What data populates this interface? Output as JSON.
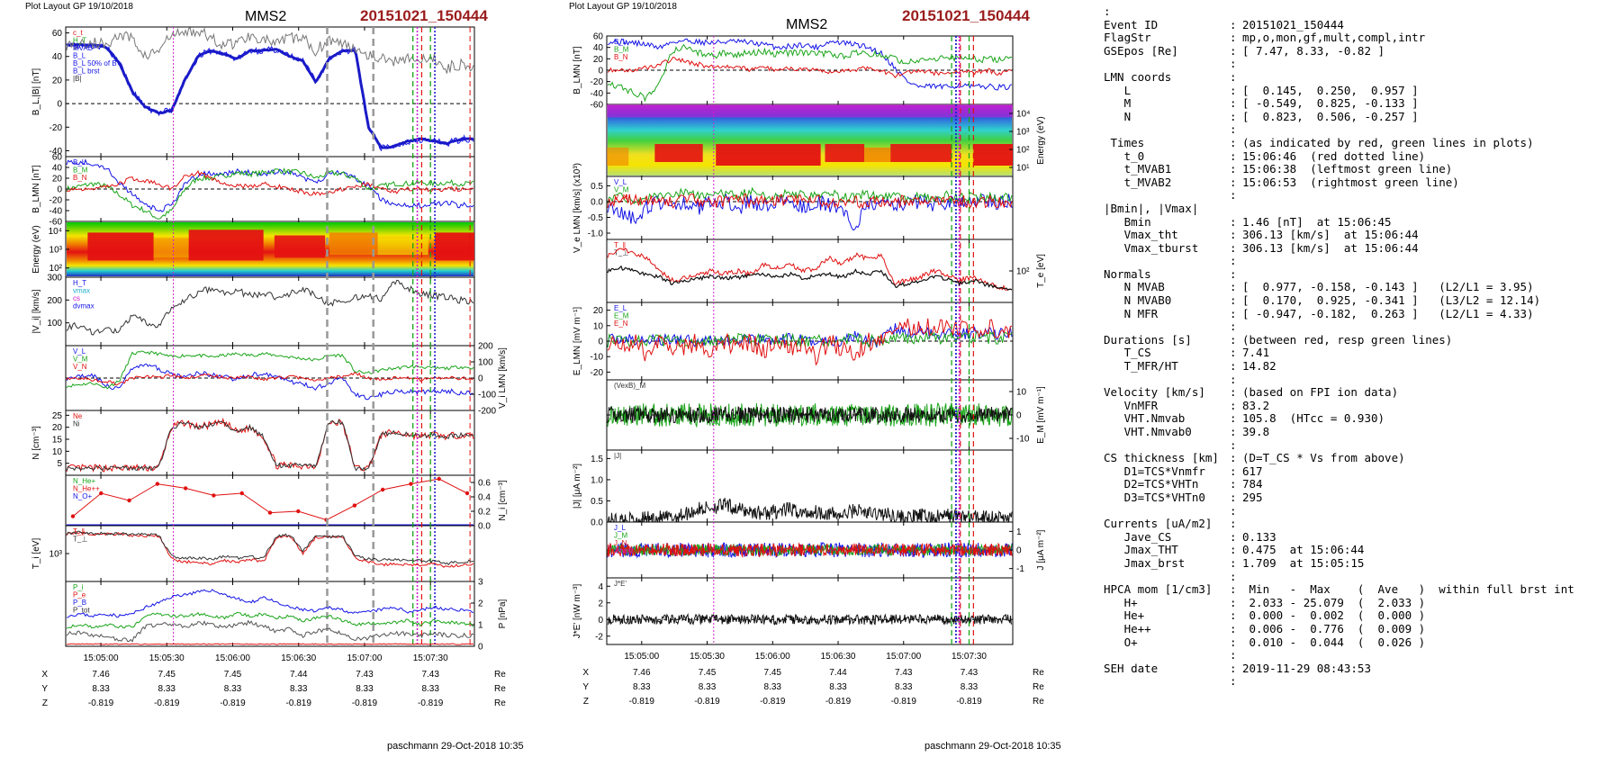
{
  "page": {
    "left_header": "Plot Layout GP 19/10/2018",
    "right_header": "Plot Layout GP 19/10/2018",
    "spacecraft": "MMS2",
    "event": "20151021_150444",
    "footer_left": "paschmann 29-Oct-2018 10:35",
    "footer_right": "paschmann 29-Oct-2018 10:35"
  },
  "colors": {
    "blue": "#1515e6",
    "green": "#1aa51a",
    "red": "#e01010",
    "magenta": "#d020d0",
    "gray": "#777777",
    "dark": "#111111",
    "event_red": "#9b1c1c"
  },
  "chart_data": [
    {
      "id": "left-stack",
      "type": "line",
      "time_ticks": [
        "15:05:00",
        "15:05:30",
        "15:06:00",
        "15:06:30",
        "15:07:00",
        "15:07:30"
      ],
      "orbit": {
        "labels": [
          "X",
          "Y",
          "Z"
        ],
        "unit": "Re",
        "X": [
          "7.46",
          "7.45",
          "7.45",
          "7.44",
          "7.43",
          "7.43"
        ],
        "Y": [
          "8.33",
          "8.33",
          "8.33",
          "8.33",
          "8.33",
          "8.33"
        ],
        "Z": [
          "-0.819",
          "-0.819",
          "-0.819",
          "-0.819",
          "-0.819",
          "-0.819"
        ]
      },
      "panels": [
        {
          "ylabel": "B_L,|B| [nT]",
          "yticks": [
            "60",
            "40",
            "20",
            "0",
            "-20",
            "-40"
          ],
          "ylim": [
            -45,
            65
          ],
          "legend": [
            "c_t",
            "H_T",
            "MVAB",
            "B_L",
            "B_L 50% of B",
            "B_L brst",
            "|B|"
          ]
        },
        {
          "ylabel": "B_LMN [nT]",
          "yticks": [
            "60",
            "40",
            "20",
            "0",
            "-20",
            "-40",
            "-60"
          ],
          "ylim": [
            -60,
            60
          ],
          "legend": [
            "B_L",
            "B_M",
            "B_N"
          ]
        },
        {
          "ylabel": "Energy (eV)",
          "type": "heatmap",
          "yticks": [
            "10⁴",
            "10³",
            "10²"
          ]
        },
        {
          "ylabel": "|V_i| [km/s]",
          "yticks": [
            "300",
            "200",
            "100"
          ],
          "ylim": [
            0,
            300
          ],
          "legend": [
            "H_T",
            "vmax",
            "cs",
            "dvmax"
          ]
        },
        {
          "ylabel": "V_i LMN [km/s]",
          "yticks": [
            "200",
            "100",
            "0",
            "-100",
            "-200"
          ],
          "ylim": [
            -200,
            200
          ],
          "legend": [
            "V_L",
            "V_M",
            "V_N"
          ]
        },
        {
          "ylabel": "N [cm⁻³]",
          "yticks": [
            "25",
            "20",
            "15",
            "10",
            "5"
          ],
          "ylim": [
            0,
            27
          ],
          "legend": [
            "Ne",
            "Ni"
          ]
        },
        {
          "ylabel": "N_i [cm⁻³]",
          "yticks": [
            "0.6",
            "0.4",
            "0.2",
            "0.0"
          ],
          "ylim": [
            0,
            0.7
          ],
          "legend": [
            "N_He+",
            "N_He++",
            "N_O+"
          ],
          "series_he_pp": [
            0.13,
            0.45,
            0.35,
            0.58,
            0.52,
            0.42,
            0.45,
            0.18,
            0.2,
            0.08,
            0.28,
            0.5,
            0.58,
            0.65,
            0.45
          ]
        },
        {
          "ylabel": "T_i [eV]",
          "yticks": [
            "10³"
          ],
          "legend": [
            "T_∥",
            "T_⊥"
          ]
        },
        {
          "ylabel": "P [nPa]",
          "yticks": [
            "3",
            "2",
            "1",
            "0"
          ],
          "ylim": [
            0,
            3
          ],
          "legend": [
            "P_i",
            "P_e",
            "P_B",
            "P_tot"
          ]
        }
      ]
    },
    {
      "id": "right-stack",
      "type": "line",
      "time_ticks": [
        "15:05:00",
        "15:05:30",
        "15:06:00",
        "15:06:30",
        "15:07:00",
        "15:07:30"
      ],
      "orbit": {
        "labels": [
          "X",
          "Y",
          "Z"
        ],
        "unit": "Re",
        "X": [
          "7.46",
          "7.45",
          "7.45",
          "7.44",
          "7.43",
          "7.43"
        ],
        "Y": [
          "8.33",
          "8.33",
          "8.33",
          "8.33",
          "8.33",
          "8.33"
        ],
        "Z": [
          "-0.819",
          "-0.819",
          "-0.819",
          "-0.819",
          "-0.819",
          "-0.819"
        ]
      },
      "panels": [
        {
          "ylabel": "B_LMN [nT]",
          "yticks": [
            "60",
            "40",
            "20",
            "0",
            "-20",
            "-40",
            "-60"
          ],
          "ylim": [
            -60,
            60
          ],
          "legend": [
            "B_L",
            "B_M",
            "B_N"
          ]
        },
        {
          "ylabel": "Energy (eV)",
          "type": "heatmap",
          "yticks": [
            "10⁴",
            "10³",
            "10²",
            "10¹"
          ]
        },
        {
          "ylabel": "V_e LMN [km/s] (x10³)",
          "yticks": [
            "0.5",
            "0.0",
            "-0.5",
            "-1.0"
          ],
          "ylim": [
            -1.2,
            0.8
          ],
          "legend": [
            "V_L",
            "V_M",
            "V_N"
          ]
        },
        {
          "ylabel": "T_e [eV]",
          "yticks": [
            "10²"
          ],
          "legend": [
            "T_∥",
            "T_⊥"
          ]
        },
        {
          "ylabel": "E_LMN [mV m⁻¹]",
          "yticks": [
            "20",
            "10",
            "0",
            "-10",
            "-20"
          ],
          "ylim": [
            -25,
            25
          ],
          "legend": [
            "E_L",
            "E_M",
            "E_N"
          ]
        },
        {
          "ylabel": "E_M [mV m⁻¹]",
          "yticks": [
            "10",
            "0",
            "-10"
          ],
          "ylim": [
            -15,
            15
          ],
          "legend": [
            "(VexB)_M"
          ]
        },
        {
          "ylabel": "|J| [μA m⁻²]",
          "yticks": [
            "1.5",
            "1.0",
            "0.5",
            "0.0"
          ],
          "ylim": [
            0,
            1.7
          ],
          "legend": [
            "|J|"
          ]
        },
        {
          "ylabel": "J [μA m⁻²]",
          "yticks": [
            "1",
            "0",
            "-1"
          ],
          "ylim": [
            -1.5,
            1.5
          ],
          "legend": [
            "J_L",
            "J_M",
            "J_N",
            "Jmaxt"
          ]
        },
        {
          "ylabel": "J*E' [nW m⁻³]",
          "yticks": [
            "4",
            "2",
            "0",
            "-2"
          ],
          "ylim": [
            -3,
            5
          ],
          "legend": [
            "J*E'"
          ]
        }
      ]
    }
  ],
  "info": [
    {
      "k": ":",
      "c": "",
      "v": ""
    },
    {
      "k": "Event ID",
      "c": ":",
      "v": "20151021_150444"
    },
    {
      "k": "FlagStr",
      "c": ":",
      "v": "mp,o,mon,gf,mult,compl,intr"
    },
    {
      "k": "GSEpos [Re]",
      "c": ":",
      "v": "[ 7.47, 8.33, -0.82 ]"
    },
    {
      "k": "",
      "c": ":",
      "v": ""
    },
    {
      "k": "LMN coords",
      "c": ":",
      "v": ""
    },
    {
      "k": "   L",
      "c": ":",
      "v": "[  0.145,  0.250,  0.957 ]"
    },
    {
      "k": "   M",
      "c": ":",
      "v": "[ -0.549,  0.825, -0.133 ]"
    },
    {
      "k": "   N",
      "c": ":",
      "v": "[  0.823,  0.506, -0.257 ]"
    },
    {
      "k": "",
      "c": ":",
      "v": ""
    },
    {
      "k": " Times",
      "c": ":",
      "v": "(as indicated by red, green lines in plots)"
    },
    {
      "k": "   t_0",
      "c": ":",
      "v": "15:06:46  (red dotted line)"
    },
    {
      "k": "   t_MVAB1",
      "c": ":",
      "v": "15:06:38  (leftmost green line)"
    },
    {
      "k": "   t_MVAB2",
      "c": ":",
      "v": "15:06:53  (rightmost green line)"
    },
    {
      "k": "",
      "c": ":",
      "v": ""
    },
    {
      "k": "|Bmin|, |Vmax|",
      "c": "",
      "v": ""
    },
    {
      "k": "   Bmin",
      "c": ":",
      "v": "1.46 [nT]  at 15:06:45"
    },
    {
      "k": "   Vmax_tht",
      "c": ":",
      "v": "306.13 [km/s]  at 15:06:44"
    },
    {
      "k": "   Vmax_tburst",
      "c": ":",
      "v": "306.13 [km/s]  at 15:06:44"
    },
    {
      "k": "",
      "c": ":",
      "v": ""
    },
    {
      "k": "Normals",
      "c": ":",
      "v": ""
    },
    {
      "k": "   N MVAB",
      "c": ":",
      "v": "[  0.977, -0.158, -0.143 ]   (L2/L1 = 3.95)"
    },
    {
      "k": "   N MVAB0",
      "c": ":",
      "v": "[  0.170,  0.925, -0.341 ]   (L3/L2 = 12.14)"
    },
    {
      "k": "   N MFR",
      "c": ":",
      "v": "[ -0.947, -0.182,  0.263 ]   (L2/L1 = 4.33)"
    },
    {
      "k": "",
      "c": ":",
      "v": ""
    },
    {
      "k": "Durations [s]",
      "c": ":",
      "v": "(between red, resp green lines)"
    },
    {
      "k": "   T_CS",
      "c": ":",
      "v": "7.41"
    },
    {
      "k": "   T_MFR/HT",
      "c": ":",
      "v": "14.82"
    },
    {
      "k": "",
      "c": ":",
      "v": ""
    },
    {
      "k": "Velocity [km/s]",
      "c": ":",
      "v": "(based on FPI ion data)"
    },
    {
      "k": "   VnMFR",
      "c": ":",
      "v": "83.2"
    },
    {
      "k": "   VHT.Nmvab",
      "c": ":",
      "v": "105.8  (HTcc = 0.930)"
    },
    {
      "k": "   VHT.Nmvab0",
      "c": ":",
      "v": "39.8"
    },
    {
      "k": "",
      "c": ":",
      "v": ""
    },
    {
      "k": "CS thickness [km]",
      "c": ":",
      "v": "(D=T_CS * Vs from above)"
    },
    {
      "k": "   D1=TCS*Vnmfr",
      "c": ":",
      "v": "617"
    },
    {
      "k": "   D2=TCS*VHTn",
      "c": ":",
      "v": "784"
    },
    {
      "k": "   D3=TCS*VHTn0",
      "c": ":",
      "v": "295"
    },
    {
      "k": "",
      "c": ":",
      "v": ""
    },
    {
      "k": "Currents [uA/m2]",
      "c": ":",
      "v": ""
    },
    {
      "k": "   Jave_CS",
      "c": ":",
      "v": "0.133"
    },
    {
      "k": "   Jmax_THT",
      "c": ":",
      "v": "0.475  at 15:06:44"
    },
    {
      "k": "   Jmax_brst",
      "c": ":",
      "v": "1.709  at 15:05:15"
    },
    {
      "k": "",
      "c": ":",
      "v": ""
    },
    {
      "k": "HPCA mom [1/cm3]",
      "c": ":",
      "v": " Min   -  Max    (  Ave   )  within full brst int"
    },
    {
      "k": "   H+",
      "c": ":",
      "v": " 2.033 - 25.079  (  2.033 )"
    },
    {
      "k": "   He+",
      "c": ":",
      "v": " 0.000 -  0.002  (  0.000 )"
    },
    {
      "k": "   He++",
      "c": ":",
      "v": " 0.006 -  0.776  (  0.009 )"
    },
    {
      "k": "   O+",
      "c": ":",
      "v": " 0.010 -  0.044  (  0.026 )"
    },
    {
      "k": "",
      "c": ":",
      "v": ""
    },
    {
      "k": "SEH date",
      "c": ":",
      "v": "2019-11-29 08:43:53"
    },
    {
      "k": "",
      "c": ":",
      "v": ""
    }
  ]
}
